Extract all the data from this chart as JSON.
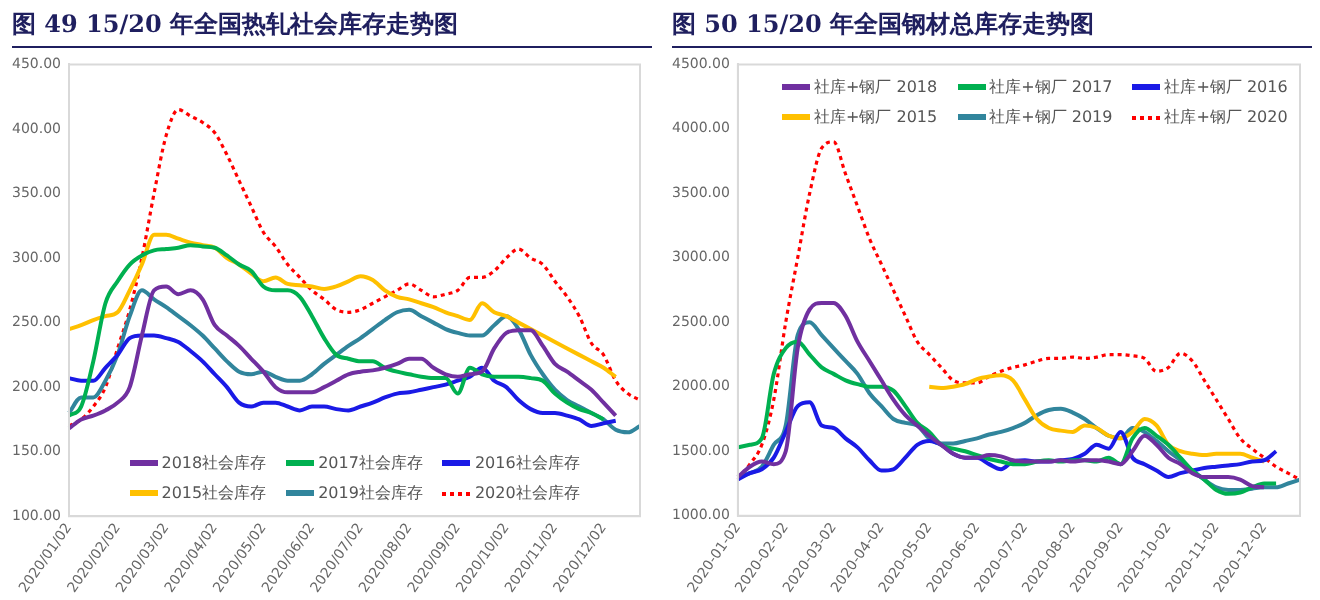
{
  "chart_data": [
    {
      "type": "line",
      "title": "图 49 15/20 年全国热轧社会库存走势图",
      "categories": [
        "2020/01/02",
        null,
        null,
        null,
        "2020/02/02",
        null,
        null,
        null,
        "2020/03/02",
        null,
        null,
        null,
        "2020/04/02",
        null,
        null,
        null,
        "2020/05/02",
        null,
        null,
        null,
        "2020/06/02",
        null,
        null,
        null,
        "2020/07/02",
        null,
        null,
        null,
        "2020/08/02",
        null,
        null,
        null,
        "2020/09/02",
        null,
        null,
        null,
        "2020/10/02",
        null,
        null,
        null,
        "2020/11/02",
        null,
        null,
        null,
        "2020/12/02",
        null,
        null,
        null
      ],
      "series": [
        {
          "name": "2018社会库存",
          "color": "#7030a0",
          "values": [
            168,
            175,
            178,
            182,
            188,
            200,
            240,
            275,
            278,
            272,
            275,
            268,
            248,
            240,
            232,
            222,
            212,
            200,
            196,
            196,
            196,
            200,
            205,
            210,
            212,
            213,
            215,
            218,
            222,
            222,
            215,
            210,
            208,
            210,
            212,
            230,
            242,
            244,
            244,
            232,
            218,
            212,
            205,
            198,
            188,
            178,
            null,
            null
          ]
        },
        {
          "name": "2017社会库存",
          "color": "#00b050",
          "values": [
            178,
            185,
            220,
            265,
            282,
            295,
            302,
            306,
            307,
            308,
            310,
            309,
            308,
            302,
            295,
            290,
            278,
            275,
            275,
            270,
            255,
            238,
            225,
            222,
            220,
            220,
            215,
            212,
            210,
            208,
            207,
            207,
            195,
            215,
            210,
            208,
            208,
            208,
            207,
            205,
            195,
            188,
            183,
            180,
            175,
            null,
            null,
            null
          ]
        },
        {
          "name": "2016社会库存",
          "color": "#1a1ae6",
          "values": [
            207,
            205,
            205,
            215,
            225,
            238,
            240,
            240,
            238,
            235,
            228,
            220,
            210,
            200,
            188,
            185,
            188,
            188,
            185,
            182,
            185,
            185,
            183,
            182,
            185,
            188,
            192,
            195,
            196,
            198,
            200,
            202,
            205,
            208,
            215,
            205,
            200,
            190,
            183,
            180,
            180,
            178,
            175,
            170,
            172,
            174,
            null,
            null
          ]
        },
        {
          "name": "2015社会库存",
          "color": "#ffc000",
          "values": [
            245,
            248,
            252,
            255,
            258,
            275,
            295,
            318,
            318,
            315,
            312,
            310,
            308,
            300,
            295,
            288,
            282,
            285,
            280,
            279,
            278,
            276,
            278,
            282,
            286,
            283,
            275,
            270,
            268,
            265,
            262,
            258,
            255,
            252,
            265,
            258,
            255,
            250,
            245,
            240,
            235,
            230,
            225,
            220,
            215,
            208,
            null,
            null
          ]
        },
        {
          "name": "2019社会库存",
          "color": "#31859c",
          "values": [
            180,
            192,
            192,
            205,
            225,
            255,
            275,
            268,
            262,
            255,
            248,
            240,
            230,
            220,
            212,
            210,
            212,
            208,
            205,
            205,
            210,
            218,
            225,
            232,
            238,
            245,
            252,
            258,
            260,
            255,
            250,
            245,
            242,
            240,
            240,
            248,
            255,
            245,
            225,
            210,
            198,
            190,
            185,
            180,
            175,
            167,
            165,
            170
          ]
        },
        {
          "name": "2020社会库存",
          "color": "#ff0000",
          "line_style": "dotted",
          "values": [
            170,
            175,
            185,
            200,
            230,
            260,
            300,
            350,
            395,
            415,
            410,
            405,
            397,
            380,
            360,
            340,
            320,
            309,
            295,
            285,
            275,
            268,
            260,
            258,
            260,
            265,
            270,
            275,
            280,
            275,
            270,
            272,
            275,
            285,
            285,
            290,
            300,
            307,
            300,
            295,
            282,
            270,
            255,
            234,
            225,
            205,
            195,
            190
          ]
        }
      ],
      "ylim": [
        100,
        450
      ],
      "yticks": [
        {
          "value": 100,
          "label": "100.00"
        },
        {
          "value": 150,
          "label": "150.00"
        },
        {
          "value": 200,
          "label": "200.00"
        },
        {
          "value": 250,
          "label": "250.00"
        },
        {
          "value": 300,
          "label": "300.00"
        },
        {
          "value": 350,
          "label": "350.00"
        },
        {
          "value": 400,
          "label": "400.00"
        },
        {
          "value": 450,
          "label": "450.00"
        }
      ],
      "grid": false,
      "legend": "bottom",
      "marker": "none",
      "line_style": "solid"
    },
    {
      "type": "line",
      "title": "图 50 15/20 年全国钢材总库存走势图",
      "categories": [
        "2020-01-02",
        null,
        null,
        null,
        "2020-02-02",
        null,
        null,
        null,
        "2020-03-02",
        null,
        null,
        null,
        "2020-04-02",
        null,
        null,
        null,
        "2020-05-02",
        null,
        null,
        null,
        "2020-06-02",
        null,
        null,
        null,
        "2020-07-02",
        null,
        null,
        null,
        "2020-08-02",
        null,
        null,
        null,
        "2020-09-02",
        null,
        null,
        null,
        "2020-10-02",
        null,
        null,
        null,
        "2020-11-02",
        null,
        null,
        null,
        "2020-12-02",
        null,
        null,
        null
      ],
      "series": [
        {
          "name": "社库+钢厂 2018",
          "color": "#7030a0",
          "values": [
            1300,
            1380,
            1420,
            1400,
            1500,
            2300,
            2600,
            2650,
            2650,
            2550,
            2350,
            2200,
            2050,
            1900,
            1780,
            1700,
            1620,
            1550,
            1480,
            1450,
            1450,
            1470,
            1460,
            1430,
            1420,
            1420,
            1420,
            1430,
            1420,
            1430,
            1430,
            1420,
            1400,
            1500,
            1620,
            1550,
            1450,
            1400,
            1330,
            1300,
            1300,
            1300,
            1280,
            1230,
            1220,
            null,
            null,
            null
          ]
        },
        {
          "name": "社库+钢厂 2017",
          "color": "#00b050",
          "values": [
            1530,
            1550,
            1600,
            2100,
            2300,
            2350,
            2250,
            2150,
            2100,
            2050,
            2020,
            2000,
            2000,
            1970,
            1850,
            1720,
            1650,
            1550,
            1520,
            1500,
            1470,
            1440,
            1420,
            1400,
            1400,
            1420,
            1430,
            1420,
            1430,
            1430,
            1420,
            1450,
            1400,
            1600,
            1680,
            1620,
            1550,
            1450,
            1350,
            1280,
            1200,
            1170,
            1180,
            1220,
            1250,
            1250,
            null,
            null
          ]
        },
        {
          "name": "社库+钢厂 2016",
          "color": "#1a1ae6",
          "values": [
            1280,
            1330,
            1360,
            1450,
            1650,
            1850,
            1880,
            1700,
            1680,
            1600,
            1530,
            1430,
            1350,
            1360,
            1450,
            1550,
            1580,
            1550,
            1480,
            1450,
            1450,
            1400,
            1360,
            1420,
            1430,
            1420,
            1420,
            1430,
            1440,
            1480,
            1550,
            1520,
            1650,
            1450,
            1400,
            1350,
            1300,
            1330,
            1350,
            1370,
            1380,
            1390,
            1400,
            1420,
            1430,
            1500,
            null,
            null
          ]
        },
        {
          "name": "社库+钢厂 2015",
          "color": "#ffc000",
          "values": [
            null,
            null,
            null,
            null,
            null,
            null,
            null,
            null,
            null,
            null,
            null,
            null,
            null,
            null,
            null,
            null,
            2000,
            1990,
            2000,
            2020,
            2060,
            2080,
            2090,
            2050,
            1900,
            1750,
            1680,
            1660,
            1650,
            1700,
            1680,
            1620,
            1600,
            1650,
            1750,
            1700,
            1550,
            1500,
            1480,
            1470,
            1480,
            1480,
            1480,
            1450,
            1420,
            null,
            null,
            null
          ]
        },
        {
          "name": "社库+钢厂 2019",
          "color": "#31859c",
          "values": [
            1300,
            1330,
            1380,
            1550,
            1700,
            2400,
            2500,
            2400,
            2300,
            2200,
            2100,
            1950,
            1850,
            1750,
            1720,
            1700,
            1600,
            1560,
            1560,
            1580,
            1600,
            1630,
            1650,
            1680,
            1720,
            1780,
            1820,
            1830,
            1800,
            1750,
            1680,
            1620,
            1600,
            1680,
            1650,
            1580,
            1500,
            1430,
            1350,
            1280,
            1220,
            1200,
            1200,
            1210,
            1220,
            1220,
            1250,
            1280
          ]
        },
        {
          "name": "社库+钢厂 2020",
          "color": "#ff0000",
          "line_style": "dotted",
          "values": [
            1280,
            1400,
            1550,
            1900,
            2500,
            3000,
            3500,
            3850,
            3900,
            3650,
            3400,
            3150,
            2950,
            2750,
            2550,
            2350,
            2250,
            2150,
            2050,
            2030,
            2030,
            2080,
            2120,
            2150,
            2170,
            2200,
            2220,
            2220,
            2230,
            2220,
            2230,
            2250,
            2250,
            2240,
            2220,
            2120,
            2150,
            2260,
            2200,
            2050,
            1900,
            1750,
            1600,
            1520,
            1450,
            1380,
            1330,
            1280
          ]
        }
      ],
      "ylim": [
        1000,
        4500
      ],
      "yticks": [
        {
          "value": 1000,
          "label": "1000.00"
        },
        {
          "value": 1500,
          "label": "1500.00"
        },
        {
          "value": 2000,
          "label": "2000.00"
        },
        {
          "value": 2500,
          "label": "2500.00"
        },
        {
          "value": 3000,
          "label": "3000.00"
        },
        {
          "value": 3500,
          "label": "3500.00"
        },
        {
          "value": 4000,
          "label": "4000.00"
        },
        {
          "value": 4500,
          "label": "4500.00"
        }
      ],
      "grid": false,
      "legend": "top right",
      "marker": "none",
      "line_style": "solid"
    }
  ]
}
